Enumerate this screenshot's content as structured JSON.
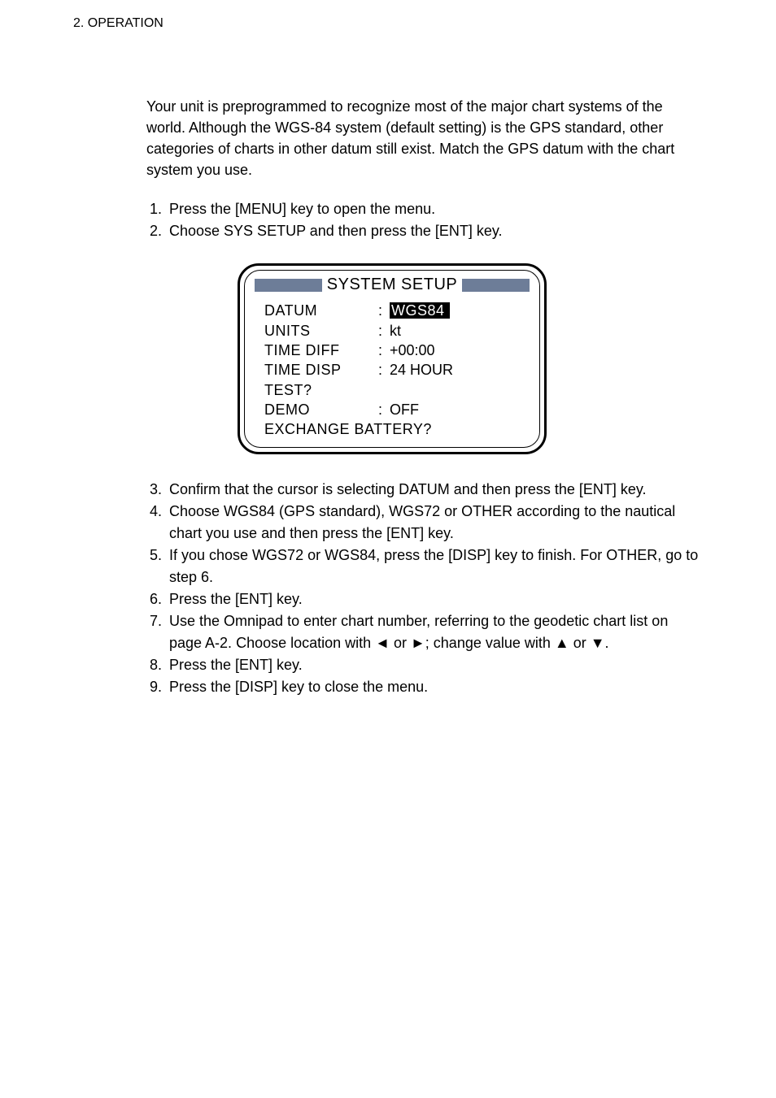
{
  "header": "2. OPERATION",
  "intro": "Your unit is preprogrammed to recognize most of the major chart systems of the world. Although the WGS-84 system (default setting) is the GPS standard, other categories of charts in other datum still exist. Match the GPS datum with the chart system you use.",
  "steps_a": [
    "Press the [MENU] key to open the menu.",
    "Choose SYS SETUP and then press the [ENT] key."
  ],
  "panel": {
    "title": "SYSTEM SETUP",
    "title_bar_color": "#6d7d98",
    "rows": [
      {
        "label": "DATUM",
        "value": "WGS84",
        "highlight": true
      },
      {
        "label": "UNITS",
        "value": "kt"
      },
      {
        "label": "TIME DIFF",
        "value": "+00:00"
      },
      {
        "label": "TIME DISP",
        "value": "24 HOUR"
      },
      {
        "label": "TEST?",
        "value": ""
      },
      {
        "label": "DEMO",
        "value": "OFF"
      },
      {
        "label": "EXCHANGE BATTERY?",
        "value": "",
        "full": true
      }
    ]
  },
  "steps_b": [
    "Confirm that the cursor is selecting DATUM and then press the [ENT] key.",
    "Choose WGS84 (GPS standard), WGS72 or OTHER according to the nautical chart you use and then press the [ENT] key.",
    "If you chose WGS72 or WGS84, press the [DISP] key to finish. For OTHER, go to step 6.",
    "Press the [ENT] key.",
    "Use the Omnipad to enter chart number, referring to the geodetic chart list on page A-2. Choose location with ◄ or ►; change value with ▲ or ▼.",
    "Press the [ENT] key.",
    "Press the [DISP] key to close the menu."
  ]
}
